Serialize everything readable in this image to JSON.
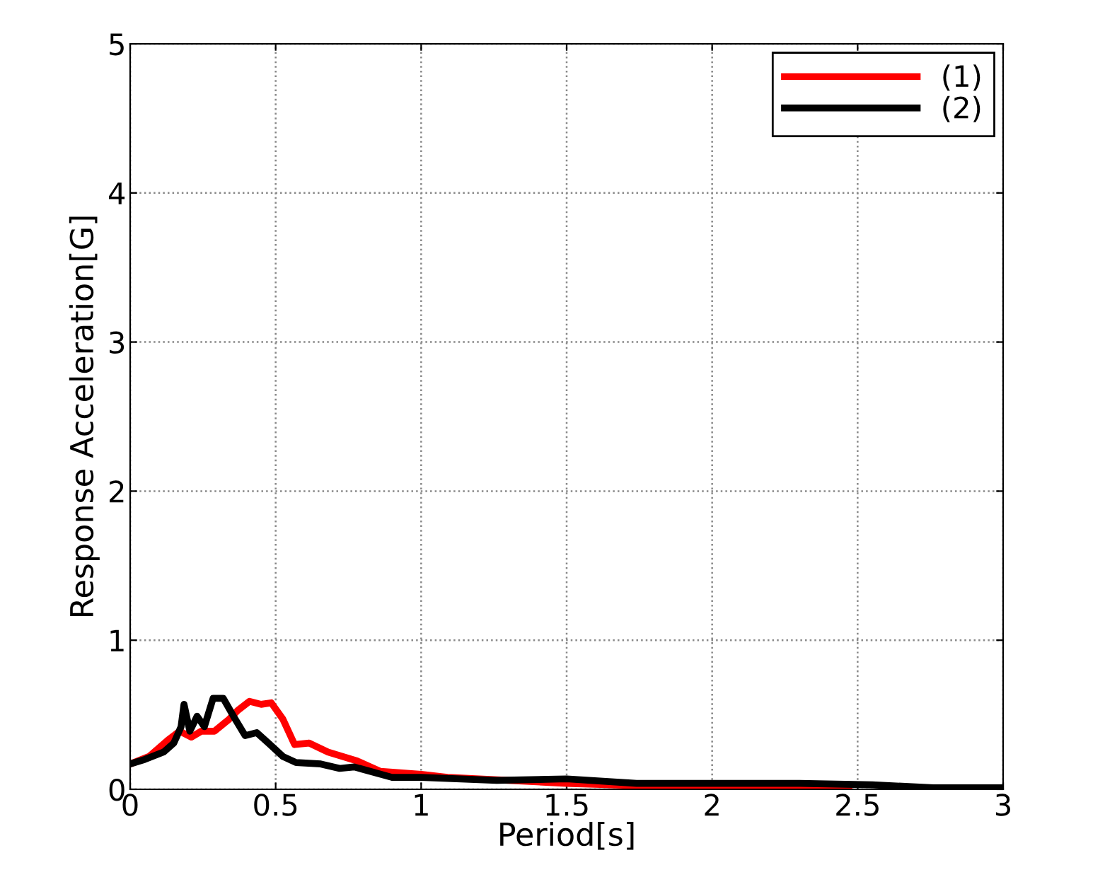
{
  "chart_data": {
    "type": "line",
    "xlabel": "Period[s]",
    "ylabel": "Response Acceleration[G]",
    "series": [
      {
        "name": "(1)",
        "color": "#ff0000",
        "x": [
          0,
          0.065,
          0.13,
          0.17,
          0.21,
          0.245,
          0.29,
          0.34,
          0.37,
          0.41,
          0.45,
          0.485,
          0.525,
          0.565,
          0.615,
          0.68,
          0.78,
          0.86,
          1.0,
          1.09,
          1.5,
          1.98,
          2.47
        ],
        "values": [
          0.17,
          0.22,
          0.33,
          0.39,
          0.35,
          0.39,
          0.39,
          0.47,
          0.53,
          0.59,
          0.57,
          0.58,
          0.47,
          0.3,
          0.31,
          0.25,
          0.19,
          0.12,
          0.1,
          0.08,
          0.04,
          0.01,
          0.01
        ]
      },
      {
        "name": "(2)",
        "color": "#000000",
        "x": [
          0,
          0.05,
          0.115,
          0.15,
          0.175,
          0.185,
          0.205,
          0.23,
          0.255,
          0.285,
          0.32,
          0.355,
          0.395,
          0.435,
          0.475,
          0.525,
          0.57,
          0.655,
          0.72,
          0.77,
          0.9,
          1.0,
          1.26,
          1.5,
          1.74,
          1.98,
          2.3,
          2.55,
          2.76,
          3.0
        ],
        "values": [
          0.17,
          0.2,
          0.25,
          0.31,
          0.42,
          0.57,
          0.39,
          0.49,
          0.42,
          0.61,
          0.61,
          0.49,
          0.36,
          0.38,
          0.31,
          0.22,
          0.18,
          0.17,
          0.14,
          0.15,
          0.08,
          0.08,
          0.06,
          0.07,
          0.04,
          0.04,
          0.04,
          0.03,
          0.01,
          0.01
        ]
      }
    ],
    "xlim": [
      0,
      3
    ],
    "ylim": [
      0,
      5
    ],
    "xticks": [
      0,
      0.5,
      1,
      1.5,
      2,
      2.5,
      3
    ],
    "yticks": [
      0,
      1,
      2,
      3,
      4,
      5
    ],
    "grid": true,
    "legend": "top right",
    "marker": "none",
    "line_style": "solid"
  }
}
